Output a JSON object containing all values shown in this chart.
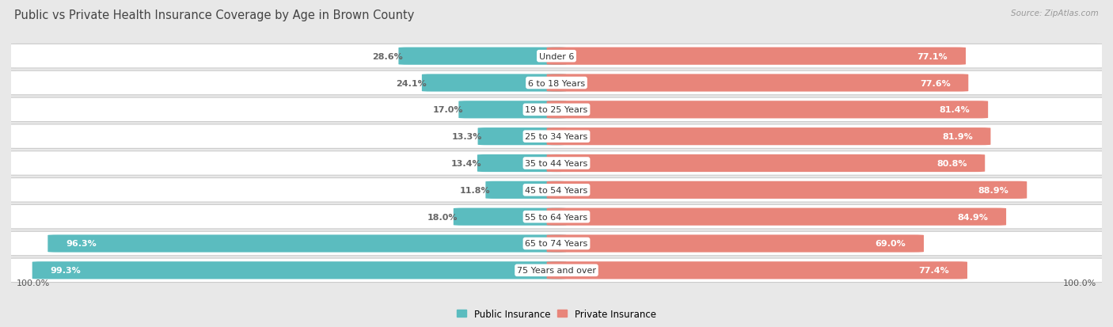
{
  "title": "Public vs Private Health Insurance Coverage by Age in Brown County",
  "source": "Source: ZipAtlas.com",
  "categories": [
    "Under 6",
    "6 to 18 Years",
    "19 to 25 Years",
    "25 to 34 Years",
    "35 to 44 Years",
    "45 to 54 Years",
    "55 to 64 Years",
    "65 to 74 Years",
    "75 Years and over"
  ],
  "public_values": [
    28.6,
    24.1,
    17.0,
    13.3,
    13.4,
    11.8,
    18.0,
    96.3,
    99.3
  ],
  "private_values": [
    77.1,
    77.6,
    81.4,
    81.9,
    80.8,
    88.9,
    84.9,
    69.0,
    77.4
  ],
  "public_color": "#5bbcbf",
  "public_color_light": "#d4eef0",
  "private_color": "#e8857a",
  "private_color_light": "#f5cbc6",
  "bg_color": "#e8e8e8",
  "row_color_dark": "#dcdcdc",
  "row_color_light": "#f0f0f0",
  "title_color": "#444444",
  "label_white": "#ffffff",
  "label_dark": "#666666",
  "axis_label_left": "100.0%",
  "axis_label_right": "100.0%",
  "legend_public": "Public Insurance",
  "legend_private": "Private Insurance",
  "title_fontsize": 10.5,
  "bar_label_fontsize": 8,
  "category_fontsize": 8,
  "axis_fontsize": 8,
  "source_fontsize": 7.5
}
